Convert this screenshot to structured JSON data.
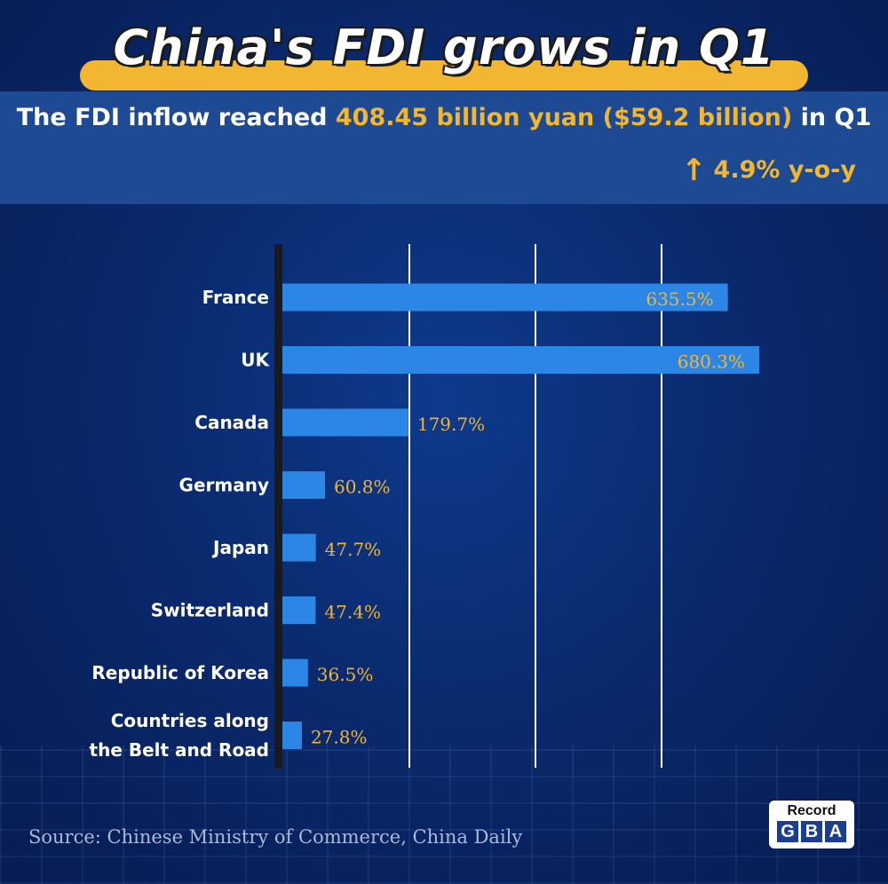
{
  "header": {
    "title": "China's FDI grows in Q1",
    "line_pre": "The FDI inflow reached ",
    "line_highlight": "408.45 billion yuan ($59.2 billion)",
    "line_post": " in Q1",
    "growth_arrow": "↑",
    "growth_text": "4.9% y-o-y"
  },
  "footer": {
    "source": "Source: Chinese Ministry of Commerce, China Daily",
    "logo_top": "Record",
    "logo_letters": [
      "G",
      "B",
      "A"
    ]
  },
  "colors": {
    "bar": "#2b86e6",
    "value_label": "#f2b632",
    "axis": "#1a1a1a",
    "gridline": "#ffffff"
  },
  "chart_data": {
    "type": "bar",
    "orientation": "horizontal",
    "title": "",
    "xlabel": "",
    "ylabel": "",
    "xlim": [
      0,
      720
    ],
    "grid": true,
    "categories": [
      [
        "France"
      ],
      [
        "UK"
      ],
      [
        "Canada"
      ],
      [
        "Germany"
      ],
      [
        "Japan"
      ],
      [
        "Switzerland"
      ],
      [
        "Republic of Korea"
      ],
      [
        "Countries along",
        "the Belt and Road"
      ]
    ],
    "values": [
      635.5,
      680.3,
      179.7,
      60.8,
      47.7,
      47.4,
      36.5,
      27.8
    ],
    "value_labels": [
      "635.5%",
      "680.3%",
      "179.7%",
      "60.8%",
      "47.7%",
      "47.4%",
      "36.5%",
      "27.8%"
    ]
  }
}
